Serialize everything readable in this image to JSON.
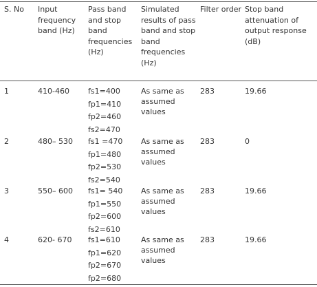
{
  "table": {
    "header": [
      "S. No",
      "Input frequency band (Hz)",
      "Pass band and stop band frequencies (Hz)",
      "Simulated results of pass band and stop band frequencies (Hz)",
      "Filter order",
      "Stop band attenuation of output response (dB)"
    ],
    "rows": [
      [
        "1",
        "410-460",
        [
          "fs1=400",
          "fp1=410",
          "fp2=460",
          "fs2=470"
        ],
        "As same as assumed values",
        "283",
        "19.66"
      ],
      [
        "2",
        "480– 530",
        [
          "fs1 =470",
          "fp1=480",
          "fp2=530",
          "fs2=540"
        ],
        "As same as assumed values",
        "283",
        "0"
      ],
      [
        "3",
        "550– 600",
        [
          "fs1= 540",
          "fp1=550",
          "fp2=600",
          "fs2=610"
        ],
        "As same as assumed values",
        "283",
        "19.66"
      ],
      [
        "4",
        "620- 670",
        [
          "fs1=610",
          "fp1=620",
          "fp2=670",
          "fp2=680"
        ],
        "As same as assumed values",
        "283",
        "19.66"
      ]
    ]
  }
}
